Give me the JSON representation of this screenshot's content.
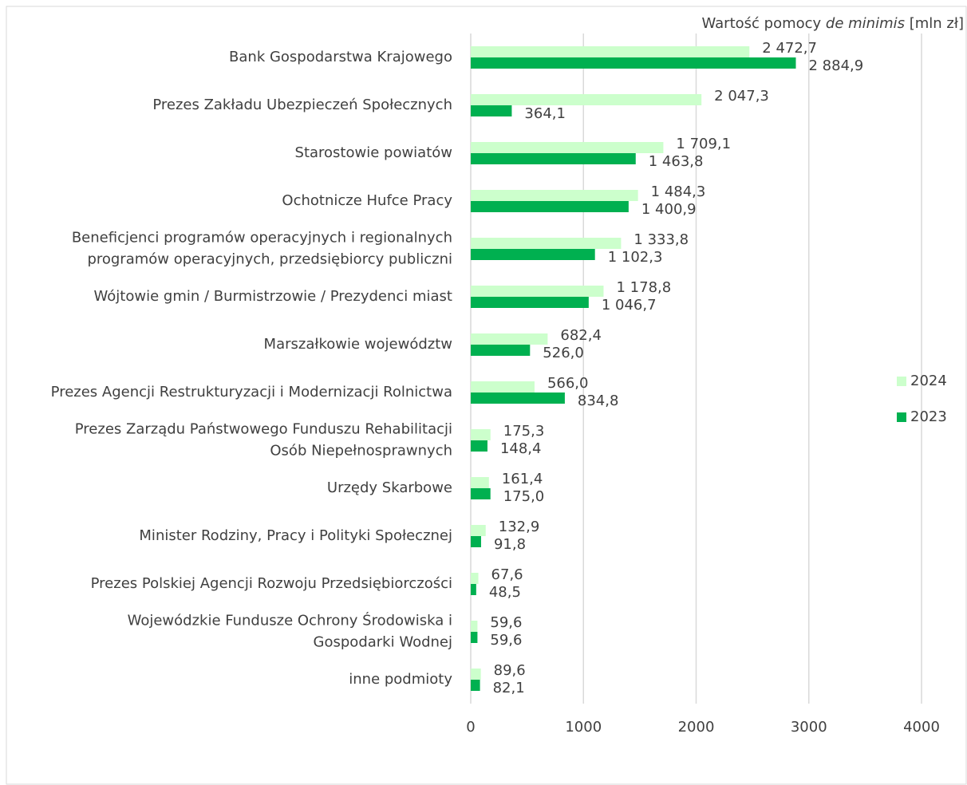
{
  "chart_data": {
    "type": "hbar",
    "xlabel": [
      "Wartość pomocy ",
      "de minimis",
      " [mln zł]"
    ],
    "categories": [
      [
        "Bank Gospodarstwa Krajowego"
      ],
      [
        "Prezes Zakładu Ubezpieczeń Społecznych"
      ],
      [
        "Starostowie powiatów"
      ],
      [
        "Ochotnicze Hufce Pracy"
      ],
      [
        "Beneficjenci programów operacyjnych i regionalnych",
        "programów operacyjnych, przedsiębiorcy publiczni"
      ],
      [
        "Wójtowie gmin / Burmistrzowie / Prezydenci miast"
      ],
      [
        "Marszałkowie województw"
      ],
      [
        "Prezes Agencji Restrukturyzacji i Modernizacji Rolnictwa"
      ],
      [
        "Prezes Zarządu Państwowego Funduszu Rehabilitacji",
        "Osób Niepełnosprawnych"
      ],
      [
        "Urzędy Skarbowe"
      ],
      [
        "Minister Rodziny, Pracy i Polityki Społecznej"
      ],
      [
        "Prezes Polskiej Agencji Rozwoju Przedsiębiorczości"
      ],
      [
        "Wojewódzkie Fundusze Ochrony Środowiska i",
        "Gospodarki Wodnej"
      ],
      [
        "inne podmioty"
      ]
    ],
    "series": [
      {
        "name": "2024",
        "color": "#ccffcc",
        "values": [
          2472.7,
          2047.3,
          1709.1,
          1484.3,
          1333.8,
          1178.8,
          682.4,
          566.0,
          175.3,
          161.4,
          132.9,
          67.6,
          59.6,
          89.6
        ],
        "value_labels": [
          "2 472,7",
          "2 047,3",
          "1 709,1",
          "1 484,3",
          "1 333,8",
          "1 178,8",
          "682,4",
          "566,0",
          "175,3",
          "161,4",
          "132,9",
          "67,6",
          "59,6",
          "89,6"
        ]
      },
      {
        "name": "2023",
        "color": "#00b050",
        "values": [
          2884.9,
          364.1,
          1463.8,
          1400.9,
          1102.3,
          1046.7,
          526.0,
          834.8,
          148.4,
          175.0,
          91.8,
          48.5,
          59.6,
          82.1
        ],
        "value_labels": [
          "2 884,9",
          "364,1",
          "1 463,8",
          "1 400,9",
          "1 102,3",
          "1 046,7",
          "526,0",
          "834,8",
          "148,4",
          "175,0",
          "91,8",
          "48,5",
          "59,6",
          "82,1"
        ]
      }
    ],
    "xlim": [
      0,
      4000
    ],
    "xticks": [
      0,
      1000,
      2000,
      3000,
      4000
    ],
    "grid": true,
    "legend": "right"
  }
}
